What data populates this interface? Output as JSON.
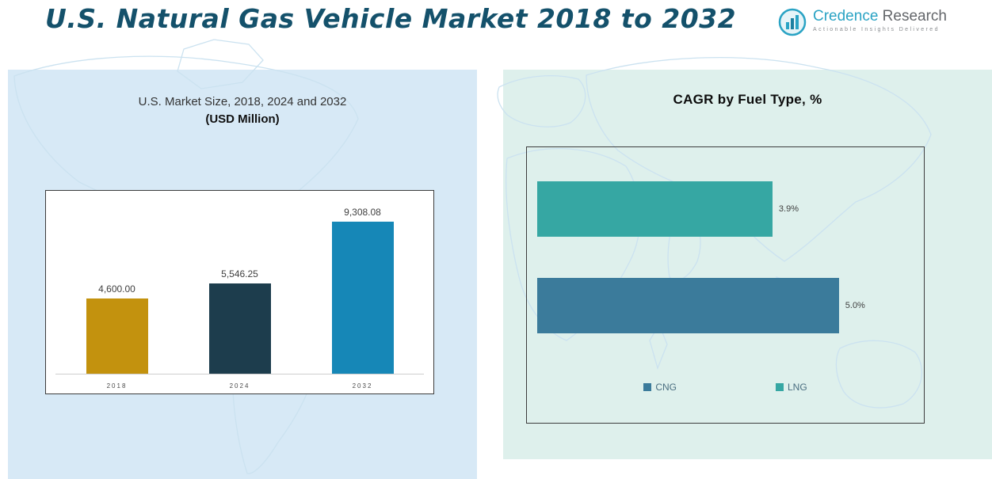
{
  "header": {
    "title": "U.S. Natural Gas Vehicle Market 2018 to 2032"
  },
  "logo": {
    "brand_primary": "Credence",
    "brand_secondary": "Research",
    "tagline": "Actionable Insights Delivered"
  },
  "chart_data": [
    {
      "type": "bar",
      "orientation": "vertical",
      "title": "U.S. Market Size, 2018, 2024 and 2032",
      "subtitle": "(USD Million)",
      "categories": [
        "2018",
        "2024",
        "2032"
      ],
      "values": [
        4600.0,
        5546.25,
        9308.08
      ],
      "value_labels": [
        "4,600.00",
        "5,546.25",
        "9,308.08"
      ],
      "colors": [
        "#c3920e",
        "#1d3d4d",
        "#1687b7"
      ],
      "ylim": [
        0,
        10000
      ],
      "grid": false,
      "legend_position": "none"
    },
    {
      "type": "bar",
      "orientation": "horizontal",
      "title": "CAGR by Fuel Type, %",
      "categories": [
        "LNG",
        "CNG"
      ],
      "values": [
        3.9,
        5.0
      ],
      "value_labels": [
        "3.9%",
        "5.0%"
      ],
      "colors": [
        "#36a7a3",
        "#3b7b9b"
      ],
      "xlim": [
        0,
        6
      ],
      "grid": false,
      "legend_position": "bottom",
      "legend": [
        {
          "label": "CNG",
          "color": "#3b7b9b"
        },
        {
          "label": "LNG",
          "color": "#36a7a3"
        }
      ]
    }
  ],
  "colors": {
    "title_text": "#14516b",
    "panel_left_bg": "#d7e9f6",
    "panel_right_bg": "#def0ec",
    "map_line": "#cbe2f0"
  }
}
